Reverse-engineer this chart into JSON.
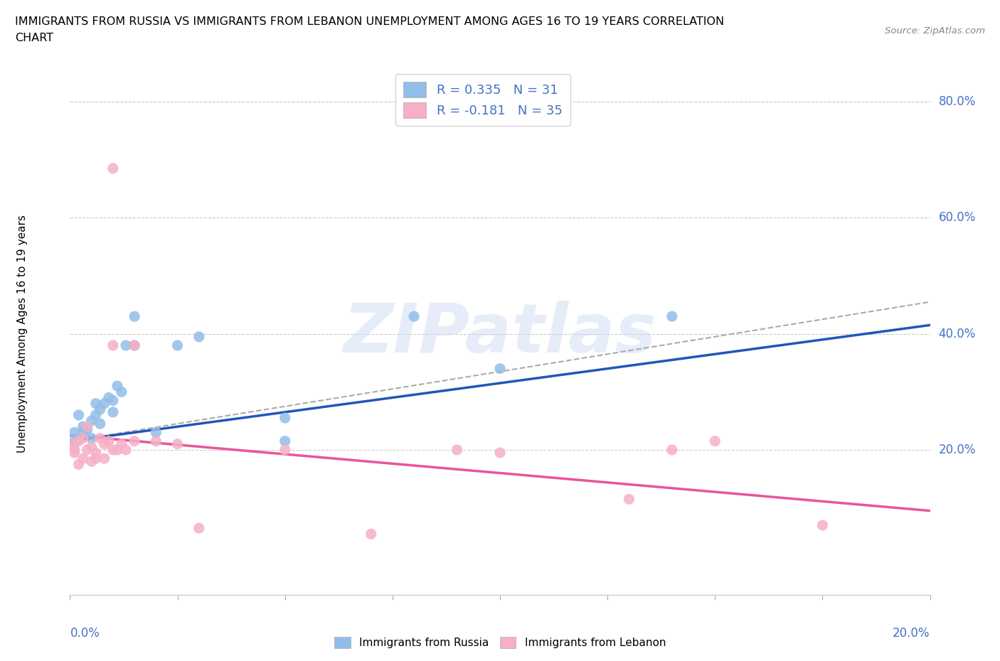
{
  "title_line1": "IMMIGRANTS FROM RUSSIA VS IMMIGRANTS FROM LEBANON UNEMPLOYMENT AMONG AGES 16 TO 19 YEARS CORRELATION",
  "title_line2": "CHART",
  "source": "Source: ZipAtlas.com",
  "ylabel": "Unemployment Among Ages 16 to 19 years",
  "r_russia": 0.335,
  "n_russia": 31,
  "r_lebanon": -0.181,
  "n_lebanon": 35,
  "russia_color": "#92bde8",
  "lebanon_color": "#f5b0c5",
  "russia_line_color": "#2255bb",
  "lebanon_line_color": "#e8559a",
  "dash_line_color": "#aaaaaa",
  "russia_x": [
    0.001,
    0.001,
    0.001,
    0.002,
    0.002,
    0.003,
    0.003,
    0.004,
    0.005,
    0.005,
    0.006,
    0.006,
    0.007,
    0.007,
    0.008,
    0.009,
    0.01,
    0.01,
    0.011,
    0.012,
    0.013,
    0.015,
    0.015,
    0.02,
    0.025,
    0.03,
    0.05,
    0.05,
    0.08,
    0.1,
    0.14
  ],
  "russia_y": [
    0.2,
    0.215,
    0.23,
    0.22,
    0.26,
    0.23,
    0.24,
    0.235,
    0.22,
    0.25,
    0.26,
    0.28,
    0.245,
    0.27,
    0.28,
    0.29,
    0.265,
    0.285,
    0.31,
    0.3,
    0.38,
    0.38,
    0.43,
    0.23,
    0.38,
    0.395,
    0.215,
    0.255,
    0.43,
    0.34,
    0.43
  ],
  "lebanon_x": [
    0.001,
    0.001,
    0.001,
    0.002,
    0.002,
    0.003,
    0.003,
    0.004,
    0.004,
    0.005,
    0.005,
    0.006,
    0.006,
    0.007,
    0.008,
    0.008,
    0.009,
    0.01,
    0.01,
    0.011,
    0.012,
    0.013,
    0.015,
    0.015,
    0.02,
    0.025,
    0.03,
    0.05,
    0.07,
    0.09,
    0.1,
    0.13,
    0.14,
    0.15,
    0.175
  ],
  "lebanon_y": [
    0.195,
    0.2,
    0.21,
    0.175,
    0.215,
    0.185,
    0.22,
    0.2,
    0.24,
    0.18,
    0.205,
    0.185,
    0.195,
    0.22,
    0.185,
    0.21,
    0.215,
    0.2,
    0.38,
    0.2,
    0.21,
    0.2,
    0.215,
    0.38,
    0.215,
    0.21,
    0.065,
    0.2,
    0.055,
    0.2,
    0.195,
    0.115,
    0.2,
    0.215,
    0.07
  ],
  "lebanon_outlier_x": [
    0.01
  ],
  "lebanon_outlier_y": [
    0.685
  ],
  "xlim": [
    0.0,
    0.2
  ],
  "ylim": [
    -0.05,
    0.85
  ],
  "yticks": [
    0.2,
    0.4,
    0.6,
    0.8
  ],
  "ytick_labels": [
    "20.0%",
    "40.0%",
    "60.0%",
    "80.0%"
  ],
  "xtick_labels_shown": [
    "0.0%",
    "20.0%"
  ],
  "watermark_text": "ZIPatlas",
  "legend_russia": "R = 0.335   N = 31",
  "legend_lebanon": "R = -0.181   N = 35",
  "legend_label_russia": "Immigrants from Russia",
  "legend_label_lebanon": "Immigrants from Lebanon",
  "russia_trend_x0": 0.0,
  "russia_trend_y0": 0.215,
  "russia_trend_x1": 0.2,
  "russia_trend_y1": 0.415,
  "lebanon_trend_x0": 0.0,
  "lebanon_trend_y0": 0.225,
  "lebanon_trend_x1": 0.2,
  "lebanon_trend_y1": 0.095,
  "dash_trend_x0": 0.0,
  "dash_trend_y0": 0.215,
  "dash_trend_x1": 0.2,
  "dash_trend_y1": 0.455
}
